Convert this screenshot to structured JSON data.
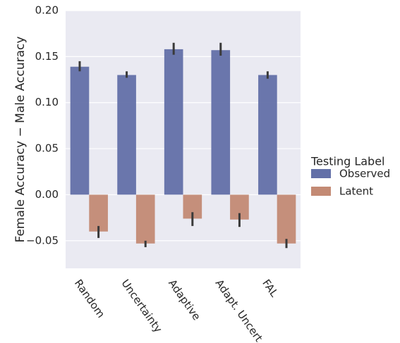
{
  "chart_data": {
    "type": "bar",
    "categories": [
      "Random",
      "Uncertainty",
      "Adaptive",
      "Adapt. Uncert.",
      "FAL"
    ],
    "series": [
      {
        "name": "Observed",
        "color": "#6370a8",
        "values": [
          0.139,
          0.13,
          0.158,
          0.157,
          0.13
        ],
        "err_low": [
          0.134,
          0.127,
          0.152,
          0.151,
          0.126
        ],
        "err_high": [
          0.145,
          0.134,
          0.165,
          0.165,
          0.134
        ]
      },
      {
        "name": "Latent",
        "color": "#c38a74",
        "values": [
          -0.04,
          -0.053,
          -0.026,
          -0.027,
          -0.053
        ],
        "err_low": [
          -0.047,
          -0.057,
          -0.034,
          -0.035,
          -0.058
        ],
        "err_high": [
          -0.034,
          -0.05,
          -0.019,
          -0.02,
          -0.048
        ]
      }
    ],
    "ylabel": "Female Accuracy − Male Accuracy",
    "xlabel": "",
    "ylim": [
      -0.08,
      0.2
    ],
    "yticks": [
      -0.05,
      0.0,
      0.05,
      0.1,
      0.15,
      0.2
    ],
    "ytick_labels": [
      "−0.05",
      "0.00",
      "0.05",
      "0.10",
      "0.15",
      "0.20"
    ],
    "grid": true,
    "legend": {
      "title": "Testing Label",
      "position": "right-outside"
    },
    "background_color": "#eaeaf2",
    "errorbar_color": "#3a3a3a"
  }
}
